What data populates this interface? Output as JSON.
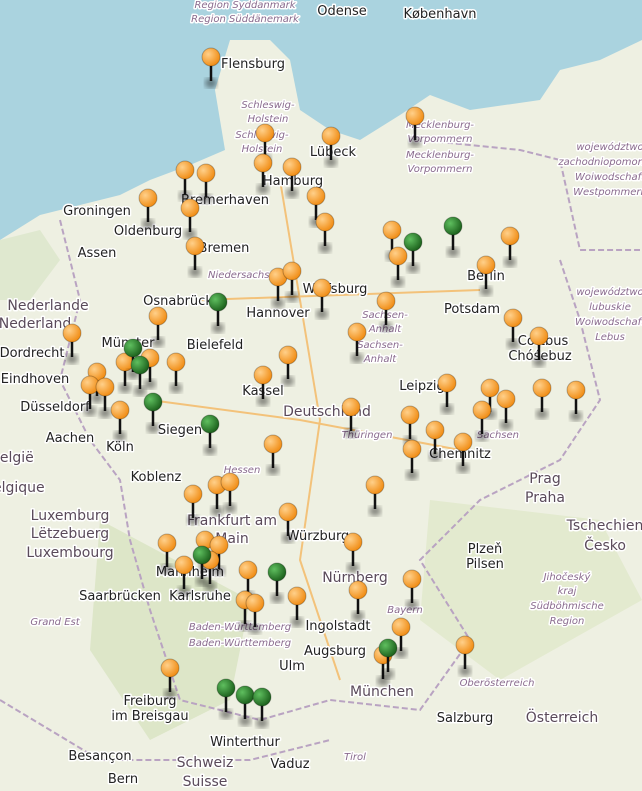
{
  "map": {
    "labels": [
      "Region Syddanmark",
      "Region Süddänemark",
      "Odense",
      "København",
      "Flensburg",
      "Schleswig-",
      "Holstein",
      "Schleswig-",
      "Holstein",
      "Lübeck",
      "Hamburg",
      "Mecklenburg-",
      "Vorpommern",
      "Mecklenburg-",
      "Vorpommern",
      "Groningen",
      "Oldenburg",
      "Bremerhaven",
      "Bremen",
      "Assen",
      "Niedersachsen",
      "Berlin",
      "Potsdam",
      "Nederlande",
      "Nederland",
      "Osnabrück",
      "Hannover",
      "Wolfsburg",
      "Sachsen-",
      "Anhalt",
      "Sachsen-",
      "Anhalt",
      "Bielefeld",
      "Dordrecht",
      "Eindhoven",
      "Münster",
      "Düsseldorf",
      "Kassel",
      "Deutschland",
      "Leipzig",
      "Cottbus",
      "Chóśebuz",
      "Siegen",
      "Aachen",
      "Köln",
      "Thüringen",
      "Sachsen",
      "Chemnitz",
      "Koblenz",
      "Hessen",
      "Prag",
      "Praha",
      "Frankfurt am",
      "Main",
      "Luxemburg",
      "Lëtzebuerg",
      "Luxembourg",
      "Würzburg",
      "Tschechien",
      "Česko",
      "Plzeň",
      "Pilsen",
      "Nürnberg",
      "Mannheim",
      "Karlsruhe",
      "Saarbrücken",
      "Jihočeský",
      "kraj",
      "Südböhmische",
      "Region",
      "Grand Est",
      "Bayern",
      "Ingolstadt",
      "Baden-Württemberg",
      "Baden-Württemberg",
      "Augsburg",
      "Ulm",
      "München",
      "Oberösterreich",
      "Freiburg",
      "im Breisgau",
      "Salzburg",
      "Österreich",
      "Winterthur",
      "Besançon",
      "Bern",
      "Schweiz",
      "Suisse",
      "Vaduz",
      "Tirol",
      "België",
      "Belgique",
      "województwo",
      "zachodniopomorskie",
      "Woiwodschaft",
      "Westpommern",
      "województwo",
      "lubuskie",
      "Woiwodschaft",
      "Lebus"
    ]
  }
}
